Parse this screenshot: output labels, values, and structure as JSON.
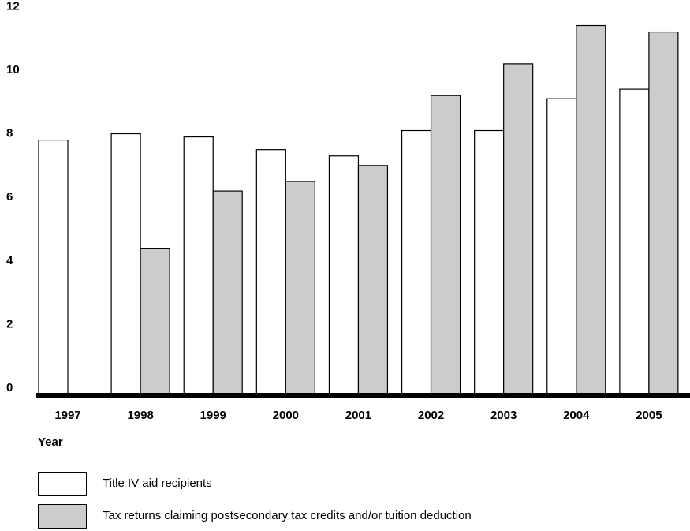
{
  "chart_data": {
    "type": "bar",
    "title": "",
    "xlabel": "Year",
    "ylabel": "",
    "ylim": [
      0,
      12
    ],
    "yticks": [
      0,
      2,
      4,
      6,
      8,
      10,
      12
    ],
    "grid": false,
    "legend_position": "bottom",
    "categories": [
      "1997",
      "1998",
      "1999",
      "2000",
      "2001",
      "2002",
      "2003",
      "2004",
      "2005"
    ],
    "series": [
      {
        "name": "Title IV aid recipients",
        "color": "#ffffff",
        "values": [
          8.0,
          8.2,
          8.1,
          7.7,
          7.5,
          8.3,
          8.3,
          9.3,
          9.6
        ]
      },
      {
        "name": "Tax returns claiming postsecondary tax credits and/or tuition deduction",
        "color": "#cccccc",
        "values": [
          null,
          4.6,
          6.4,
          6.7,
          7.2,
          9.4,
          10.4,
          11.6,
          11.4
        ]
      }
    ]
  }
}
